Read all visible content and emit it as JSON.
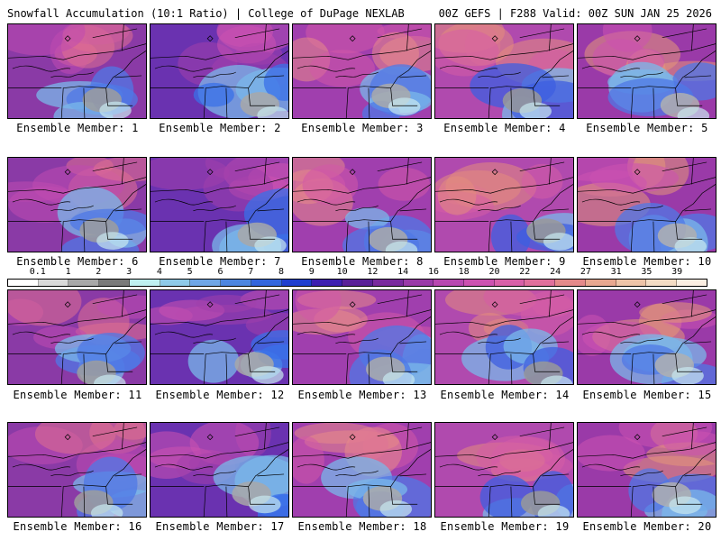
{
  "header": {
    "title_left": "Snowfall Accumulation (10:1 Ratio) | College of DuPage NEXLAB",
    "title_right": "00Z GEFS | F288 Valid: 00Z SUN JAN 25 2026"
  },
  "colorbar": {
    "labels": [
      "0.1",
      "1",
      "2",
      "3",
      "4",
      "5",
      "6",
      "7",
      "8",
      "9",
      "10",
      "12",
      "14",
      "16",
      "18",
      "20",
      "22",
      "24",
      "27",
      "31",
      "35",
      "39"
    ],
    "colors": [
      "#ffffff",
      "#d9d9d9",
      "#a8a8a8",
      "#7a7a7a",
      "#bff0f0",
      "#8ecae8",
      "#6fa6e6",
      "#4d86e0",
      "#3366dd",
      "#1f3fcf",
      "#3d1fb0",
      "#5a2098",
      "#7a2a9e",
      "#9a3aa8",
      "#b848b0",
      "#cc52b0",
      "#d861a8",
      "#e0709c",
      "#e48a8a",
      "#e8a890",
      "#eec4a8",
      "#f4dcc4",
      "#fbeee2"
    ]
  },
  "members": [
    {
      "label": "Ensemble Member: 1",
      "icon": "snowfall-map"
    },
    {
      "label": "Ensemble Member: 2",
      "icon": "snowfall-map"
    },
    {
      "label": "Ensemble Member: 3",
      "icon": "snowfall-map"
    },
    {
      "label": "Ensemble Member: 4",
      "icon": "snowfall-map"
    },
    {
      "label": "Ensemble Member: 5",
      "icon": "snowfall-map"
    },
    {
      "label": "Ensemble Member: 6",
      "icon": "snowfall-map"
    },
    {
      "label": "Ensemble Member: 7",
      "icon": "snowfall-map"
    },
    {
      "label": "Ensemble Member: 8",
      "icon": "snowfall-map"
    },
    {
      "label": "Ensemble Member: 9",
      "icon": "snowfall-map"
    },
    {
      "label": "Ensemble Member: 10",
      "icon": "snowfall-map"
    },
    {
      "label": "Ensemble Member: 11",
      "icon": "snowfall-map"
    },
    {
      "label": "Ensemble Member: 12",
      "icon": "snowfall-map"
    },
    {
      "label": "Ensemble Member: 13",
      "icon": "snowfall-map"
    },
    {
      "label": "Ensemble Member: 14",
      "icon": "snowfall-map"
    },
    {
      "label": "Ensemble Member: 15",
      "icon": "snowfall-map"
    },
    {
      "label": "Ensemble Member: 16",
      "icon": "snowfall-map"
    },
    {
      "label": "Ensemble Member: 17",
      "icon": "snowfall-map"
    },
    {
      "label": "Ensemble Member: 18",
      "icon": "snowfall-map"
    },
    {
      "label": "Ensemble Member: 19",
      "icon": "snowfall-map"
    },
    {
      "label": "Ensemble Member: 20",
      "icon": "snowfall-map"
    }
  ]
}
